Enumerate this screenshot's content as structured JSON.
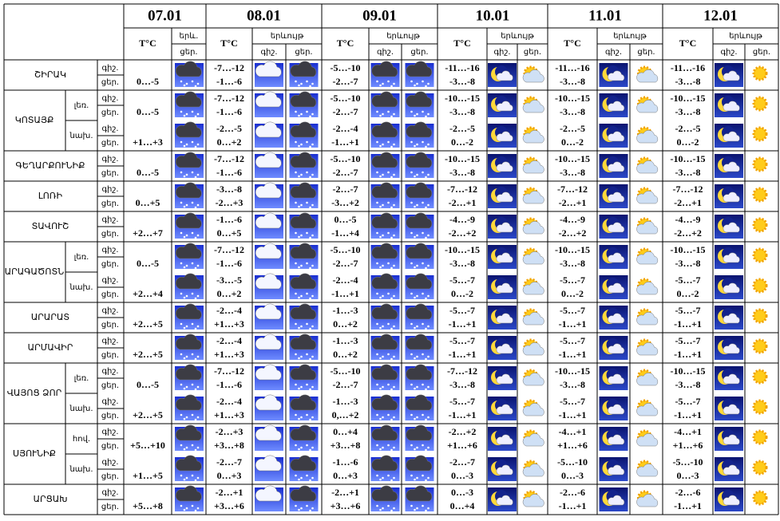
{
  "header": {
    "days": [
      {
        "date": "07.01",
        "temp": "T°C",
        "phenomenon": "երև.",
        "day": "ցեր."
      },
      {
        "date": "08.01",
        "temp": "T°C",
        "phenomenon": "երևույթ",
        "night": "գիշ.",
        "day": "ցեր."
      },
      {
        "date": "09.01",
        "temp": "T°C",
        "phenomenon": "երևույթ",
        "night": "գիշ.",
        "day": "ցեր."
      },
      {
        "date": "10.01",
        "temp": "T°C",
        "phenomenon": "երևույթ",
        "night": "գիշ.",
        "day": "ցեր."
      },
      {
        "date": "11.01",
        "temp": "T°C",
        "phenomenon": "երևույթ",
        "night": "գիշ.",
        "day": "ցեր."
      },
      {
        "date": "12.01",
        "temp": "T°C",
        "phenomenon": "երևույթ",
        "night": "գիշ.",
        "day": "ցեր."
      }
    ]
  },
  "groups": [
    {
      "name": "ՇԻՐԱԿ",
      "rows": [
        {
          "labels": [
            "գիշ.",
            "ցեր."
          ],
          "first": "0…-5",
          "temps": [
            [
              "-7…-12",
              "-1…-6"
            ],
            [
              "-5…-10",
              "-2…-7"
            ],
            [
              "-11…-16",
              "-3…-8"
            ],
            [
              "-11…-16",
              "-3…-8"
            ],
            [
              "-11…-16",
              "-3…-8"
            ]
          ]
        }
      ]
    },
    {
      "name": "ԿՈՏԱՅՔ",
      "rows": [
        {
          "zone": "լեռ.",
          "labels": [
            "գիշ.",
            "ցեր."
          ],
          "first": "0…-5",
          "temps": [
            [
              "-7…-12",
              "-1…-6"
            ],
            [
              "-5…-10",
              "-2…-7"
            ],
            [
              "-10…-15",
              "-3…-8"
            ],
            [
              "-10…-15",
              "-3…-8"
            ],
            [
              "-10…-15",
              "-3…-8"
            ]
          ]
        },
        {
          "zone": "նախ.",
          "labels": [
            "գիշ.",
            "ցեր."
          ],
          "first": "+1…+3",
          "temps": [
            [
              "-2…-5",
              "0…+2"
            ],
            [
              "-2…-4",
              "-1…+1"
            ],
            [
              "-2…-5",
              "0…-2"
            ],
            [
              "-2…-5",
              "0…-2"
            ],
            [
              "-2…-5",
              "0…-2"
            ]
          ]
        }
      ]
    },
    {
      "name": "ԳԵՂԱՐՔՈՒՆԻՔ",
      "rows": [
        {
          "labels": [
            "գիշ.",
            "ցեր."
          ],
          "first": "0…-5",
          "temps": [
            [
              "-7…-12",
              "-1…-6"
            ],
            [
              "-5…-10",
              "-2…-7"
            ],
            [
              "-10…-15",
              "-3…-8"
            ],
            [
              "-10…-15",
              "-3…-8"
            ],
            [
              "-10…-15",
              "-3…-8"
            ]
          ]
        }
      ]
    },
    {
      "name": "ԼՈՌԻ",
      "rows": [
        {
          "labels": [
            "գիշ.",
            "ցեր."
          ],
          "first": "0…+5",
          "temps": [
            [
              "-3…-8",
              "-2…+3"
            ],
            [
              "-2…-7",
              "-3…+2"
            ],
            [
              "-7…-12",
              "-2…+1"
            ],
            [
              "-7…-12",
              "-2…+1"
            ],
            [
              "-7…-12",
              "-2…+1"
            ]
          ]
        }
      ]
    },
    {
      "name": "ՏԱՎՈՒՇ",
      "rows": [
        {
          "labels": [
            "գիշ.",
            "ցեր."
          ],
          "first": "+2…+7",
          "temps": [
            [
              "-1…-6",
              "0…+5"
            ],
            [
              "0…-5",
              "-1…+4"
            ],
            [
              "-4…-9",
              "-2…+2"
            ],
            [
              "-4…-9",
              "-2…+2"
            ],
            [
              "-4…-9",
              "-2…+2"
            ]
          ]
        }
      ]
    },
    {
      "name": "ԱՐԱԳԱԾՈՏՆ",
      "rows": [
        {
          "zone": "լեռ.",
          "labels": [
            "գիշ.",
            "ցեր."
          ],
          "first": "0…-5",
          "temps": [
            [
              "-7…-12",
              "-1…-6"
            ],
            [
              "-5…-10",
              "-2…-7"
            ],
            [
              "-10…-15",
              "-3…-8"
            ],
            [
              "-10…-15",
              "-3…-8"
            ],
            [
              "-10…-15",
              "-3…-8"
            ]
          ]
        },
        {
          "zone": "նախ.",
          "labels": [
            "գիշ.",
            "ցեր."
          ],
          "first": "+2…+4",
          "temps": [
            [
              "-3…-5",
              "0…+2"
            ],
            [
              "-2…-4",
              "-1…+1"
            ],
            [
              "-5…-7",
              "0…-2"
            ],
            [
              "-5…-7",
              "0…-2"
            ],
            [
              "-5…-7",
              "0…-2"
            ]
          ]
        }
      ]
    },
    {
      "name": "ԱՐԱՐԱՏ",
      "rows": [
        {
          "labels": [
            "գիշ.",
            "ցեր."
          ],
          "first": "+2…+5",
          "temps": [
            [
              "-2…-4",
              "+1…+3"
            ],
            [
              "-1…-3",
              "0…+2"
            ],
            [
              "-5…-7",
              "-1…+1"
            ],
            [
              "-5…-7",
              "-1…+1"
            ],
            [
              "-5…-7",
              "-1…+1"
            ]
          ]
        }
      ]
    },
    {
      "name": "ԱՐՄԱՎԻՐ",
      "rows": [
        {
          "labels": [
            "գիշ.",
            "ցեր."
          ],
          "first": "+2…+5",
          "temps": [
            [
              "-2…-4",
              "+1…+3"
            ],
            [
              "-1…-3",
              "0…+2"
            ],
            [
              "-5…-7",
              "-1…+1"
            ],
            [
              "-5…-7",
              "-1…+1"
            ],
            [
              "-5…-7",
              "-1…+1"
            ]
          ]
        }
      ]
    },
    {
      "name": "ՎԱՅՈՑ ՁՈՐ",
      "rows": [
        {
          "zone": "լեռ.",
          "labels": [
            "գիշ.",
            "ցեր."
          ],
          "first": "0…-5",
          "temps": [
            [
              "-7…-12",
              "-1…-6"
            ],
            [
              "-5…-10",
              "-2…-7"
            ],
            [
              "-7…-12",
              "-3…-8"
            ],
            [
              "-10…-15",
              "-3…-8"
            ],
            [
              "-10…-15",
              "-3…-8"
            ]
          ]
        },
        {
          "zone": "նախ.",
          "labels": [
            "գիշ.",
            "ցեր."
          ],
          "first": "+2…+5",
          "temps": [
            [
              "-2…-4",
              "+1…+3"
            ],
            [
              "-1…-3",
              "0,…+2"
            ],
            [
              "-5…-7",
              "-1…+1"
            ],
            [
              "-5…-7",
              "-1…+1"
            ],
            [
              "-5…-7",
              "-1…+1"
            ]
          ]
        }
      ]
    },
    {
      "name": "ՍՅՈՒՆԻՔ",
      "rows": [
        {
          "zone": "հով.",
          "labels": [
            "գիշ.",
            "ցեր."
          ],
          "first": "+5…+10",
          "temps": [
            [
              "-2…+3",
              "+3…+8"
            ],
            [
              "0…+4",
              "+3…+8"
            ],
            [
              "-2…+2",
              "+1…+6"
            ],
            [
              "-4…+1",
              "+1…+6"
            ],
            [
              "-4…+1",
              "+1…+6"
            ]
          ]
        },
        {
          "zone": "նախ.",
          "labels": [
            "գիշ.",
            "ցեր."
          ],
          "first": "+1…+5",
          "temps": [
            [
              "-2…-7",
              "0…+3"
            ],
            [
              "-1…-6",
              "0…+3"
            ],
            [
              "-2…-7",
              "0…-3"
            ],
            [
              "-5…-10",
              "0…-3"
            ],
            [
              "-5…-10",
              "0…-3"
            ]
          ]
        }
      ]
    },
    {
      "name": "ԱՐՑԱԽ",
      "rows": [
        {
          "labels": [
            "գիշ.",
            "ցեր."
          ],
          "first": "+5…+8",
          "temps": [
            [
              "-2…+1",
              "+3…+6"
            ],
            [
              "-2…+1",
              "+3…+6"
            ],
            [
              "0…-3",
              "0…+4"
            ],
            [
              "-2…-6",
              "-1…+1"
            ],
            [
              "-2…-6",
              "-1…+1"
            ]
          ]
        }
      ]
    }
  ]
}
